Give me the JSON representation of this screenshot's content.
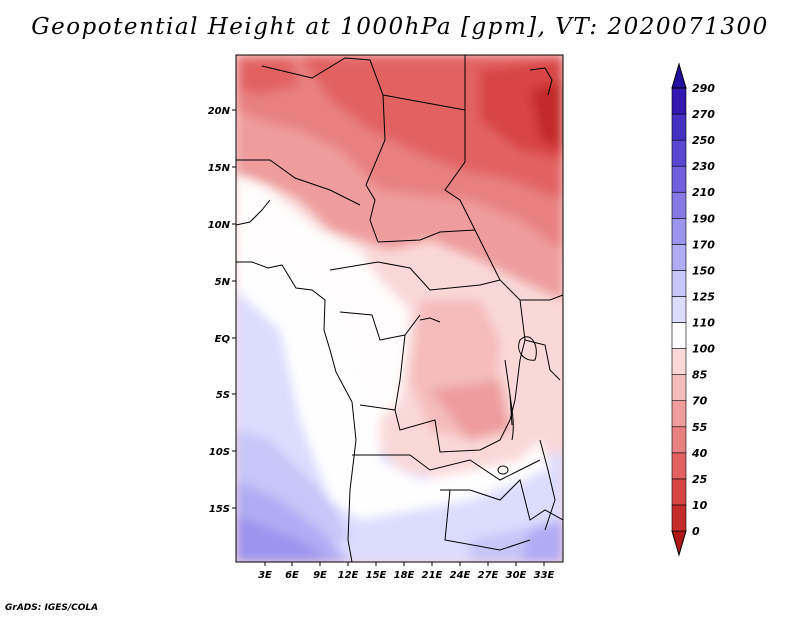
{
  "title": "Geopotential Height at 1000hPa [gpm], VT: 2020071300",
  "credit": "GrADS: IGES/COLA",
  "map": {
    "lat_labels": [
      "20N",
      "15N",
      "10N",
      "5N",
      "EQ",
      "5S",
      "10S",
      "15S"
    ],
    "lon_labels": [
      "3E",
      "6E",
      "9E",
      "12E",
      "15E",
      "18E",
      "21E",
      "24E",
      "27E",
      "30E",
      "33E"
    ]
  },
  "colorbar": {
    "levels": [
      "0",
      "10",
      "25",
      "40",
      "55",
      "70",
      "85",
      "100",
      "110",
      "125",
      "150",
      "170",
      "190",
      "210",
      "230",
      "250",
      "270",
      "290"
    ],
    "colors": [
      "#b01818",
      "#c42c2c",
      "#d84444",
      "#e26262",
      "#e88080",
      "#ee9c9c",
      "#f4bcbc",
      "#fad8d8",
      "#ffffff",
      "#dcdcff",
      "#c6c6f8",
      "#b0acf4",
      "#9c94ee",
      "#8878e6",
      "#7060dc",
      "#5a48d2",
      "#4630c4",
      "#3218b0",
      "#2410a0"
    ],
    "unit": "gpm"
  }
}
